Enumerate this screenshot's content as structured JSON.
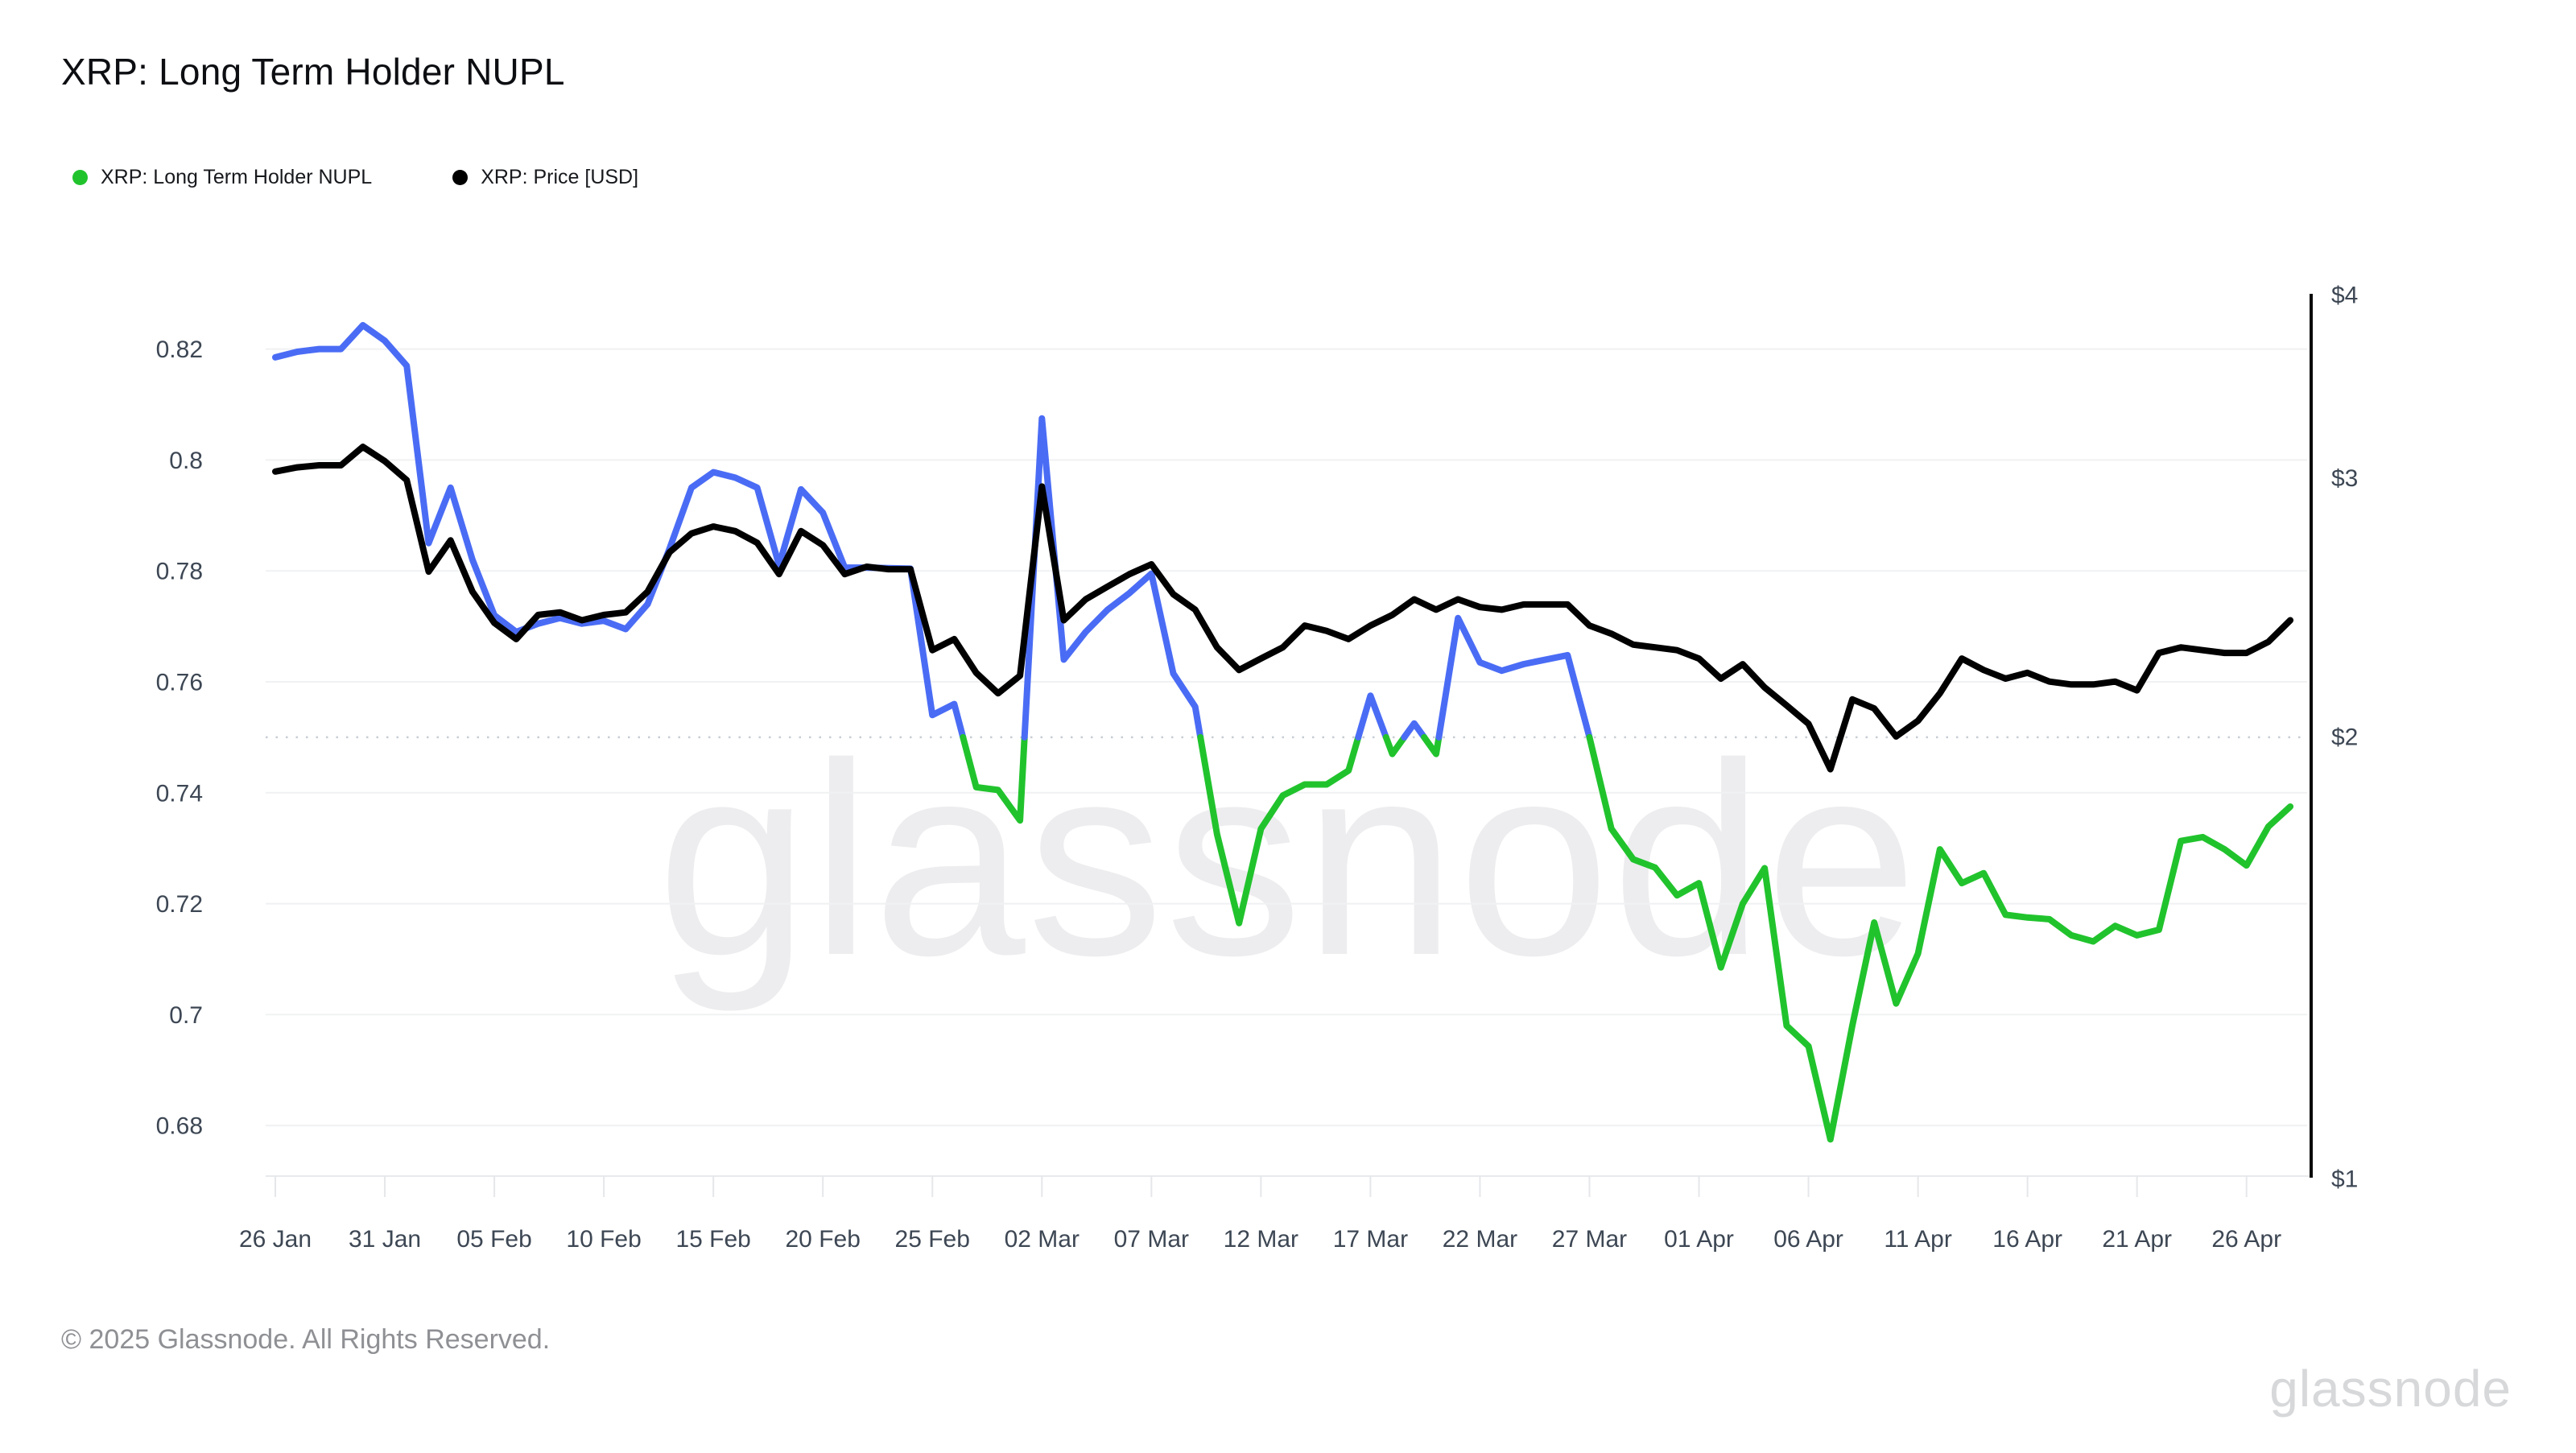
{
  "title": "XRP: Long Term Holder NUPL",
  "legend": [
    {
      "label": "XRP: Long Term Holder NUPL",
      "color": "#21c32d"
    },
    {
      "label": "XRP: Price [USD]",
      "color": "#000000"
    }
  ],
  "footer": {
    "copyright": "© 2025 Glassnode. All Rights Reserved.",
    "logo": "glassnode"
  },
  "watermark": "glassnode",
  "colors": {
    "nupl_above_threshold": "#4a6cf5",
    "nupl_below_threshold": "#21c32d",
    "price": "#000000",
    "gridline": "#f0f1f3",
    "threshold_dotted": "#c7cdd3",
    "axis_text": "#3d4754",
    "right_axis_line": "#0a0a0a"
  },
  "chart_data": {
    "type": "line",
    "title": "XRP: Long Term Holder NUPL",
    "left_axis": {
      "tick_values": [
        0.82,
        0.8,
        0.78,
        0.76,
        0.74,
        0.72,
        0.7,
        0.68
      ],
      "tick_labels": [
        "0.82",
        "0.8",
        "0.78",
        "0.76",
        "0.74",
        "0.72",
        "0.7",
        "0.68"
      ],
      "scale": "linear",
      "grid": true
    },
    "right_axis": {
      "tick_values": [
        4,
        3,
        2,
        1
      ],
      "tick_labels": [
        "$4",
        "$3",
        "$2",
        "$1"
      ],
      "scale": "log",
      "grid": false
    },
    "threshold": 0.75,
    "x_tick_labels": [
      "26 Jan",
      "31 Jan",
      "05 Feb",
      "10 Feb",
      "15 Feb",
      "20 Feb",
      "25 Feb",
      "02 Mar",
      "07 Mar",
      "12 Mar",
      "17 Mar",
      "22 Mar",
      "27 Mar",
      "01 Apr",
      "06 Apr",
      "11 Apr",
      "16 Apr",
      "21 Apr",
      "26 Apr"
    ],
    "dates": [
      "26 Jan",
      "27 Jan",
      "28 Jan",
      "29 Jan",
      "30 Jan",
      "31 Jan",
      "01 Feb",
      "02 Feb",
      "03 Feb",
      "04 Feb",
      "05 Feb",
      "06 Feb",
      "07 Feb",
      "08 Feb",
      "09 Feb",
      "10 Feb",
      "11 Feb",
      "12 Feb",
      "13 Feb",
      "14 Feb",
      "15 Feb",
      "16 Feb",
      "17 Feb",
      "18 Feb",
      "19 Feb",
      "20 Feb",
      "21 Feb",
      "22 Feb",
      "23 Feb",
      "24 Feb",
      "25 Feb",
      "26 Feb",
      "27 Feb",
      "28 Feb",
      "01 Mar",
      "02 Mar",
      "03 Mar",
      "04 Mar",
      "05 Mar",
      "06 Mar",
      "07 Mar",
      "08 Mar",
      "09 Mar",
      "10 Mar",
      "11 Mar",
      "12 Mar",
      "13 Mar",
      "14 Mar",
      "15 Mar",
      "16 Mar",
      "17 Mar",
      "18 Mar",
      "19 Mar",
      "20 Mar",
      "21 Mar",
      "22 Mar",
      "23 Mar",
      "24 Mar",
      "25 Mar",
      "26 Mar",
      "27 Mar",
      "28 Mar",
      "29 Mar",
      "30 Mar",
      "31 Mar",
      "01 Apr",
      "02 Apr",
      "03 Apr",
      "04 Apr",
      "05 Apr",
      "06 Apr",
      "07 Apr",
      "08 Apr",
      "09 Apr",
      "10 Apr",
      "11 Apr",
      "12 Apr",
      "13 Apr",
      "14 Apr",
      "15 Apr",
      "16 Apr",
      "17 Apr",
      "18 Apr",
      "19 Apr",
      "20 Apr",
      "21 Apr",
      "22 Apr",
      "23 Apr",
      "24 Apr",
      "25 Apr",
      "26 Apr",
      "27 Apr",
      "28 Apr"
    ],
    "series": [
      {
        "name": "XRP: Long Term Holder NUPL",
        "axis": "left",
        "values": [
          0.8185,
          0.8195,
          0.82,
          0.82,
          0.8243,
          0.8215,
          0.817,
          0.785,
          0.795,
          0.782,
          0.772,
          0.769,
          0.7705,
          0.7715,
          0.7705,
          0.771,
          0.7695,
          0.774,
          0.784,
          0.795,
          0.7978,
          0.7968,
          0.795,
          0.781,
          0.7947,
          0.7905,
          0.7806,
          0.7806,
          0.7805,
          0.7804,
          0.754,
          0.756,
          0.741,
          0.7405,
          0.735,
          0.8075,
          0.764,
          0.769,
          0.773,
          0.776,
          0.7795,
          0.7615,
          0.7555,
          0.7325,
          0.7165,
          0.7335,
          0.7395,
          0.7415,
          0.7415,
          0.744,
          0.7575,
          0.747,
          0.7525,
          0.747,
          0.7715,
          0.7635,
          0.762,
          0.7632,
          0.764,
          0.7648,
          0.75,
          0.7335,
          0.728,
          0.7265,
          0.7215,
          0.7237,
          0.7085,
          0.72,
          0.7264,
          0.698,
          0.6943,
          0.6775,
          0.698,
          0.7166,
          0.702,
          0.711,
          0.7298,
          0.7237,
          0.7255,
          0.718,
          0.7175,
          0.7172,
          0.7143,
          0.7132,
          0.716,
          0.7143,
          0.7153,
          0.7313,
          0.732,
          0.7298,
          0.7269,
          0.7339,
          0.7375
        ]
      },
      {
        "name": "XRP: Price [USD]",
        "axis": "right",
        "values": [
          3.03,
          3.05,
          3.06,
          3.06,
          3.15,
          3.08,
          2.99,
          2.59,
          2.72,
          2.51,
          2.39,
          2.33,
          2.42,
          2.43,
          2.4,
          2.42,
          2.43,
          2.51,
          2.67,
          2.75,
          2.78,
          2.76,
          2.71,
          2.58,
          2.76,
          2.7,
          2.58,
          2.61,
          2.6,
          2.6,
          2.29,
          2.33,
          2.21,
          2.14,
          2.2,
          2.96,
          2.4,
          2.48,
          2.53,
          2.58,
          2.62,
          2.5,
          2.44,
          2.3,
          2.22,
          2.26,
          2.3,
          2.38,
          2.36,
          2.33,
          2.38,
          2.42,
          2.48,
          2.44,
          2.48,
          2.45,
          2.44,
          2.46,
          2.46,
          2.46,
          2.38,
          2.35,
          2.31,
          2.3,
          2.29,
          2.26,
          2.19,
          2.24,
          2.16,
          2.1,
          2.04,
          1.9,
          2.12,
          2.09,
          2.0,
          2.05,
          2.14,
          2.26,
          2.22,
          2.19,
          2.21,
          2.18,
          2.17,
          2.17,
          2.18,
          2.15,
          2.28,
          2.3,
          2.29,
          2.28,
          2.28,
          2.32,
          2.4
        ]
      }
    ]
  }
}
